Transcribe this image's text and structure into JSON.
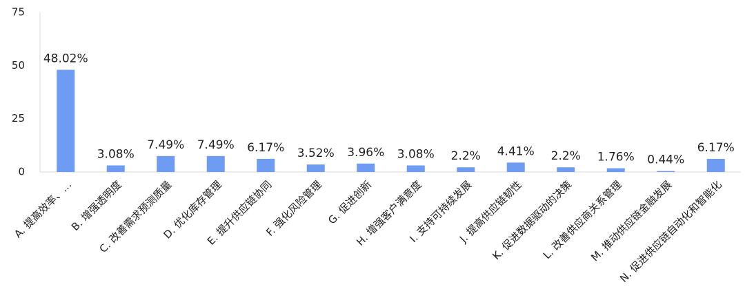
{
  "chart_data": {
    "type": "bar",
    "categories": [
      "A. 提高效率、…",
      "B. 增强透明度",
      "C. 改善需求预测质量",
      "D. 优化库存管理",
      "E. 提升供应链协同",
      "F. 强化风险管理",
      "G. 促进创新",
      "H. 增强客户满意度",
      "I. 支持可持续发展",
      "J. 提高供应链韧性",
      "K. 促进数据驱动的决策",
      "L. 改善供应商关系管理",
      "M. 推动供应链金融发展",
      "N. 促进供应链自动化和智能化"
    ],
    "values": [
      48.02,
      3.08,
      7.49,
      7.49,
      6.17,
      3.52,
      3.96,
      3.08,
      2.2,
      4.41,
      2.2,
      1.76,
      0.44,
      6.17
    ],
    "value_labels": [
      "48.02%",
      "3.08%",
      "7.49%",
      "7.49%",
      "6.17%",
      "3.52%",
      "3.96%",
      "3.08%",
      "2.2%",
      "4.41%",
      "2.2%",
      "1.76%",
      "0.44%",
      "6.17%"
    ],
    "color": "#6e9cf3",
    "ylim": [
      0,
      75
    ],
    "yticks": [
      0,
      25,
      50,
      75
    ],
    "grid": false
  }
}
